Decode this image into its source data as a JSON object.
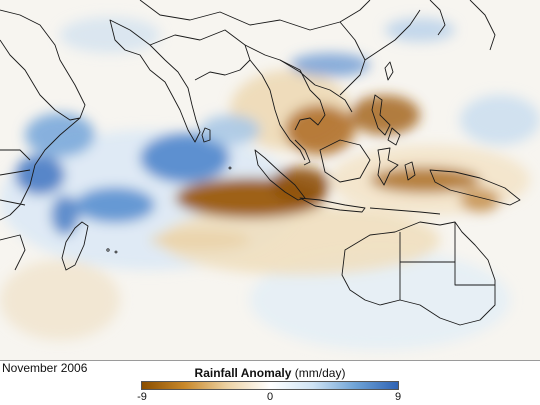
{
  "caption": {
    "date": "November 2006",
    "legend_title": "Rainfall Anomaly",
    "legend_units": "(mm/day)"
  },
  "legend": {
    "min_label": "-9",
    "mid_label": "0",
    "max_label": "9",
    "colors": [
      "#8a4e00",
      "#c8882a",
      "#ecd2a4",
      "#ffffff",
      "#cfe3f4",
      "#6fa3d6",
      "#2f63b4"
    ]
  },
  "map": {
    "region": "Indian Ocean and Maritime Continent",
    "land_outline_color": "#1a1a1a",
    "dry_color": "#9b5a0e",
    "wet_color": "#3a74c4"
  }
}
